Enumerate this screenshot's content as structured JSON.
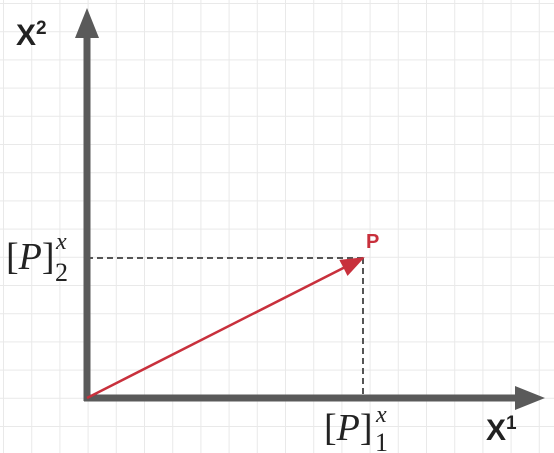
{
  "colors": {
    "axis": "#5a5a5a",
    "vector": "#c8303c",
    "grid": "#e9e9e9",
    "dashes": "#555555",
    "text": "#222222"
  },
  "axes": {
    "x_label": "X",
    "x_label_sup": "1",
    "y_label": "X",
    "y_label_sup": "2"
  },
  "point": {
    "label": "P"
  },
  "components": {
    "x_component": {
      "open": "[",
      "symbol": "P",
      "close": "]",
      "superscript": "x",
      "subscript": "1"
    },
    "y_component": {
      "open": "[",
      "symbol": "P",
      "close": "]",
      "superscript": "x",
      "subscript": "2"
    }
  }
}
